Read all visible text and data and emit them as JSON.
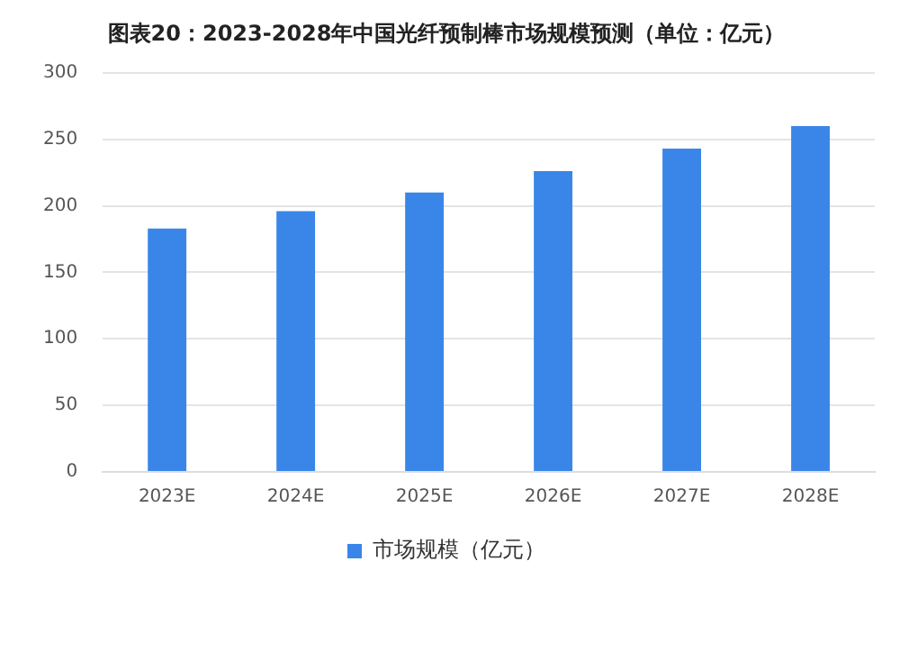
{
  "chart_data": {
    "type": "bar",
    "title": "图表20：2023-2028年中国光纤预制棒市场规模预测（单位：亿元）",
    "categories": [
      "2023E",
      "2024E",
      "2025E",
      "2026E",
      "2027E",
      "2028E"
    ],
    "series": [
      {
        "name": "市场规模（亿元）",
        "color": "#3a86e8",
        "values": [
          183,
          196,
          210,
          226,
          243,
          260
        ]
      }
    ],
    "ylim": [
      0,
      300
    ],
    "yticks": [
      0,
      50,
      100,
      150,
      200,
      250,
      300
    ],
    "grid": "y",
    "legend": "bottom"
  }
}
